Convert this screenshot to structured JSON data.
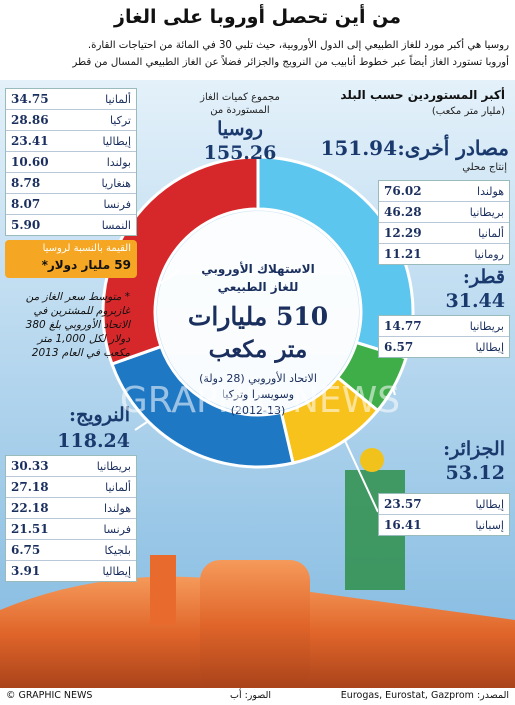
{
  "title": "من أين تحصل أوروبا على الغاز",
  "subtitle": [
    "روسيا هي أكبر مورد للغاز الطبيعي إلى الدول الأوروبية، حيث تلبي 30 في المائة من احتياجات القارة.",
    "أوروبا تستورد الغاز أيضاً عبر خطوط أنابيب من النرويج والجزائر فضلاً عن الغاز الطبيعي المسال من قطر"
  ],
  "chart_data": {
    "type": "donut",
    "categories": [
      "مصادر أخرى:",
      "قطر:",
      "الجزائر:",
      "النرويج:",
      "روسيا"
    ],
    "values": [
      151.94,
      31.44,
      53.12,
      118.24,
      155.26
    ],
    "colors": [
      "#5cc6ef",
      "#3fae49",
      "#f8c21c",
      "#1f78c4",
      "#d6282b"
    ]
  },
  "center": [
    "الاستهلاك الأوروبي",
    "للغاز الطبيعي",
    "510 مليارات",
    "متر مكعب",
    "الاتحاد الأوروبي (28 دولة)",
    "وسويسرا وتركيا",
    "(2012-13)"
  ],
  "russia_caption": [
    "مجموع كميات الغاز",
    "المستوردة من"
  ],
  "legend_title": "أكبر المستوردين حسب البلد",
  "legend_unit": "(مليار متر مكعب)",
  "local_production": "إنتاج محلي",
  "tables": [
    {
      "countries": [
        "هولندا",
        "بريطانيا",
        "ألمانيا",
        "رومانيا"
      ],
      "values": [
        76.02,
        46.28,
        12.29,
        11.21
      ]
    },
    {
      "countries": [
        "بريطانيا",
        "إيطاليا"
      ],
      "values": [
        14.77,
        6.57
      ]
    },
    {
      "countries": [
        "إيطاليا",
        "إسبانيا"
      ],
      "values": [
        23.57,
        16.41
      ]
    },
    {
      "countries": [
        "بريطانيا",
        "ألمانيا",
        "هولندا",
        "فرنسا",
        "بلجيكا",
        "إيطاليا"
      ],
      "values": [
        30.33,
        27.18,
        22.18,
        21.51,
        6.75,
        3.91
      ]
    },
    {
      "countries": [
        "ألمانيا",
        "تركيا",
        "إيطاليا",
        "بولندا",
        "هنغاريا",
        "فرنسا",
        "النمسا"
      ],
      "values": [
        34.75,
        28.86,
        23.41,
        10.6,
        8.78,
        8.07,
        5.9
      ],
      "value_labels": [
        "34.75",
        "28.86",
        "23.41",
        "10.60",
        "8.78",
        "8.07",
        "5.90"
      ]
    }
  ],
  "value_box": [
    "القيمة بالنسبة لروسيا",
    "59 مليار دولار*"
  ],
  "footnote": "* متوسط سعر الغاز من غازبروم للمشترين في الاتحاد الأوروبي بلغ 380 دولار لكل 1,000 متر مكعب في العام 2013",
  "watermark": "GRAPHIC NEWS",
  "footer": {
    "credit": "© GRAPHIC NEWS",
    "photos": "الصور: أب",
    "source": "المصدر: Eurogas, Eurostat, Gazprom"
  }
}
